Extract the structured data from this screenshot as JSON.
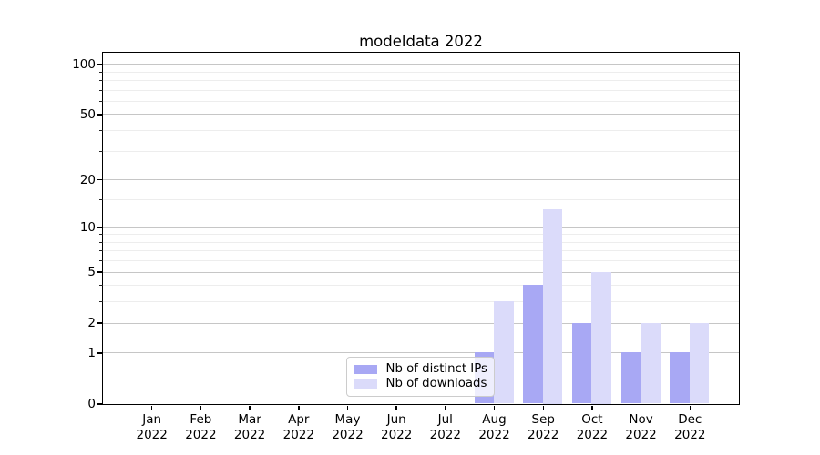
{
  "title": "modeldata 2022",
  "chart_data": {
    "type": "bar",
    "title": "modeldata 2022",
    "x_tick_months": [
      "Jan",
      "Feb",
      "Mar",
      "Apr",
      "May",
      "Jun",
      "Jul",
      "Aug",
      "Sep",
      "Oct",
      "Nov",
      "Dec"
    ],
    "x_tick_year": "2022",
    "categories": [
      "Jan 2022",
      "Feb 2022",
      "Mar 2022",
      "Apr 2022",
      "May 2022",
      "Jun 2022",
      "Jul 2022",
      "Aug 2022",
      "Sep 2022",
      "Oct 2022",
      "Nov 2022",
      "Dec 2022"
    ],
    "series": [
      {
        "name": "Nb of distinct IPs",
        "color": "#a8a8f4",
        "values": [
          0,
          0,
          0,
          0,
          0,
          0,
          0,
          1,
          4,
          2,
          1,
          1
        ]
      },
      {
        "name": "Nb of downloads",
        "color": "#dbdbfa",
        "values": [
          0,
          0,
          0,
          0,
          0,
          0,
          0,
          3,
          13,
          5,
          2,
          2
        ]
      }
    ],
    "xlabel": "",
    "ylabel": "",
    "yscale": "log1p",
    "ylim": [
      0,
      117
    ],
    "yticks": [
      0,
      1,
      2,
      5,
      10,
      20,
      50,
      100
    ],
    "minor_yticks": [
      3,
      4,
      6,
      7,
      8,
      9,
      15,
      30,
      40,
      60,
      70,
      80,
      90
    ],
    "grid": {
      "major_color": "#c6c6c6",
      "minor_color": "#ededed",
      "on": true
    },
    "legend": {
      "position": "lower center-left",
      "face_alpha": 0.8
    },
    "axis_color": "#000000",
    "background": "#ffffff"
  }
}
